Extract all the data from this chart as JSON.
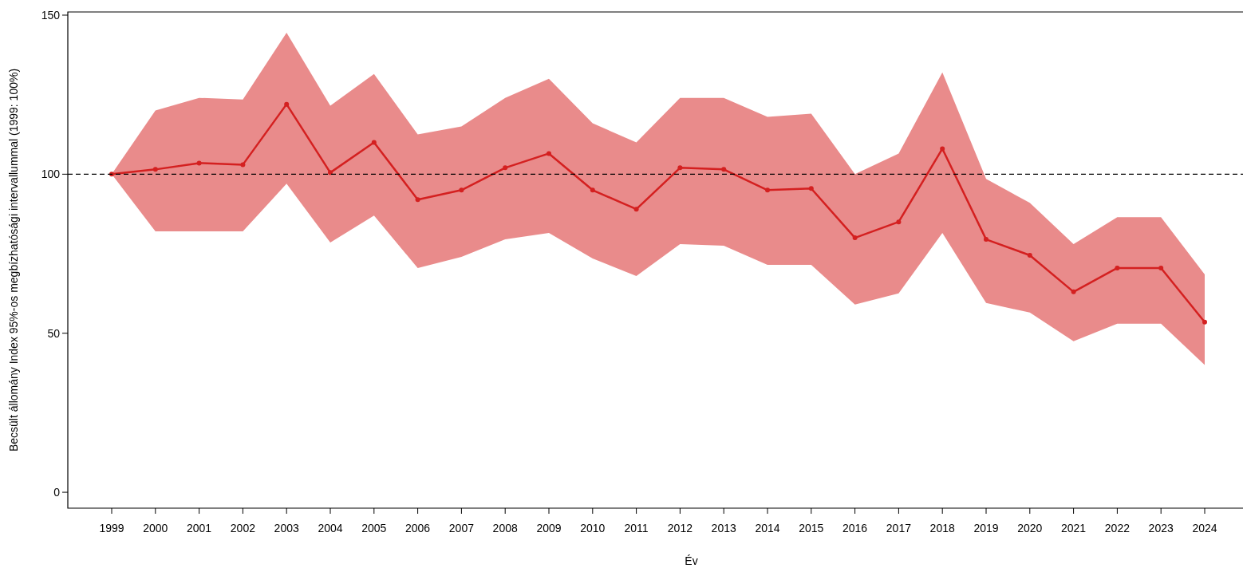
{
  "chart_data": {
    "type": "line",
    "xlabel": "Év",
    "ylabel": "Becsült állomány Index 95%-os megbízhatósági intervallummal (1999: 100%)",
    "categories": [
      "1999",
      "2000",
      "2001",
      "2002",
      "2003",
      "2004",
      "2005",
      "2006",
      "2007",
      "2008",
      "2009",
      "2010",
      "2011",
      "2012",
      "2013",
      "2014",
      "2015",
      "2016",
      "2017",
      "2018",
      "2019",
      "2020",
      "2021",
      "2022",
      "2023",
      "2024"
    ],
    "series": [
      {
        "color": "#d42020",
        "values": [
          100,
          101.5,
          103.5,
          103,
          122,
          100.5,
          110,
          92,
          95,
          102,
          106.5,
          95,
          89,
          102,
          101.5,
          95,
          95.5,
          80,
          85,
          108,
          79.5,
          74.5,
          63,
          70.5,
          70.5,
          53.5
        ],
        "lower": [
          100,
          82,
          82,
          82,
          97,
          78.5,
          87,
          70.5,
          74,
          79.5,
          81.5,
          73.5,
          68,
          78,
          77.5,
          71.5,
          71.5,
          59,
          62.5,
          81.5,
          59.5,
          56.5,
          47.5,
          53,
          53,
          40
        ],
        "upper": [
          100,
          120,
          124,
          123.5,
          144.5,
          121.5,
          131.5,
          112.5,
          115,
          124,
          130,
          116,
          110,
          124,
          124,
          118,
          119,
          100,
          106.5,
          132,
          98.5,
          91,
          78,
          86.5,
          86.5,
          68.5
        ]
      }
    ],
    "ylim": [
      -5,
      151
    ],
    "yticks": [
      0,
      50,
      100,
      150
    ],
    "ref_lines": [
      {
        "axis": "y",
        "value": 100,
        "color": "#000000",
        "line_style": "dashed"
      }
    ],
    "marker": "circle",
    "line_style": "solid"
  }
}
